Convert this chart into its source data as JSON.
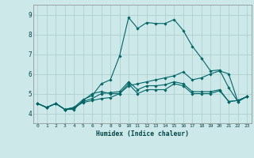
{
  "xlabel": "Humidex (Indice chaleur)",
  "bg_color": "#cce8e8",
  "grid_color": "#aacccc",
  "line_color": "#006666",
  "xlim": [
    -0.5,
    23.5
  ],
  "ylim": [
    3.5,
    9.5
  ],
  "xticks": [
    0,
    1,
    2,
    3,
    4,
    5,
    6,
    7,
    8,
    9,
    10,
    11,
    12,
    13,
    14,
    15,
    16,
    17,
    18,
    19,
    20,
    21,
    22,
    23
  ],
  "yticks": [
    4,
    5,
    6,
    7,
    8,
    9
  ],
  "series": [
    [
      4.5,
      4.3,
      4.5,
      4.2,
      4.2,
      4.65,
      5.0,
      5.1,
      5.0,
      5.0,
      5.5,
      5.0,
      5.2,
      5.2,
      5.2,
      5.5,
      5.4,
      5.0,
      5.0,
      5.0,
      5.15,
      4.6,
      4.65,
      4.85
    ],
    [
      4.5,
      4.3,
      4.5,
      4.2,
      4.3,
      4.55,
      4.65,
      4.75,
      4.8,
      5.0,
      5.4,
      5.5,
      5.6,
      5.7,
      5.8,
      5.9,
      6.1,
      5.7,
      5.8,
      6.0,
      6.15,
      6.0,
      4.6,
      4.85
    ],
    [
      4.5,
      4.3,
      4.5,
      4.2,
      4.3,
      4.7,
      4.9,
      5.5,
      5.7,
      6.9,
      8.85,
      8.3,
      8.6,
      8.55,
      8.55,
      8.75,
      8.2,
      7.4,
      6.8,
      6.15,
      6.2,
      5.3,
      4.6,
      4.85
    ],
    [
      4.5,
      4.3,
      4.5,
      4.2,
      4.25,
      4.6,
      4.75,
      5.0,
      5.05,
      5.1,
      5.6,
      5.2,
      5.4,
      5.4,
      5.45,
      5.6,
      5.5,
      5.1,
      5.1,
      5.1,
      5.2,
      4.6,
      4.65,
      4.85
    ]
  ]
}
